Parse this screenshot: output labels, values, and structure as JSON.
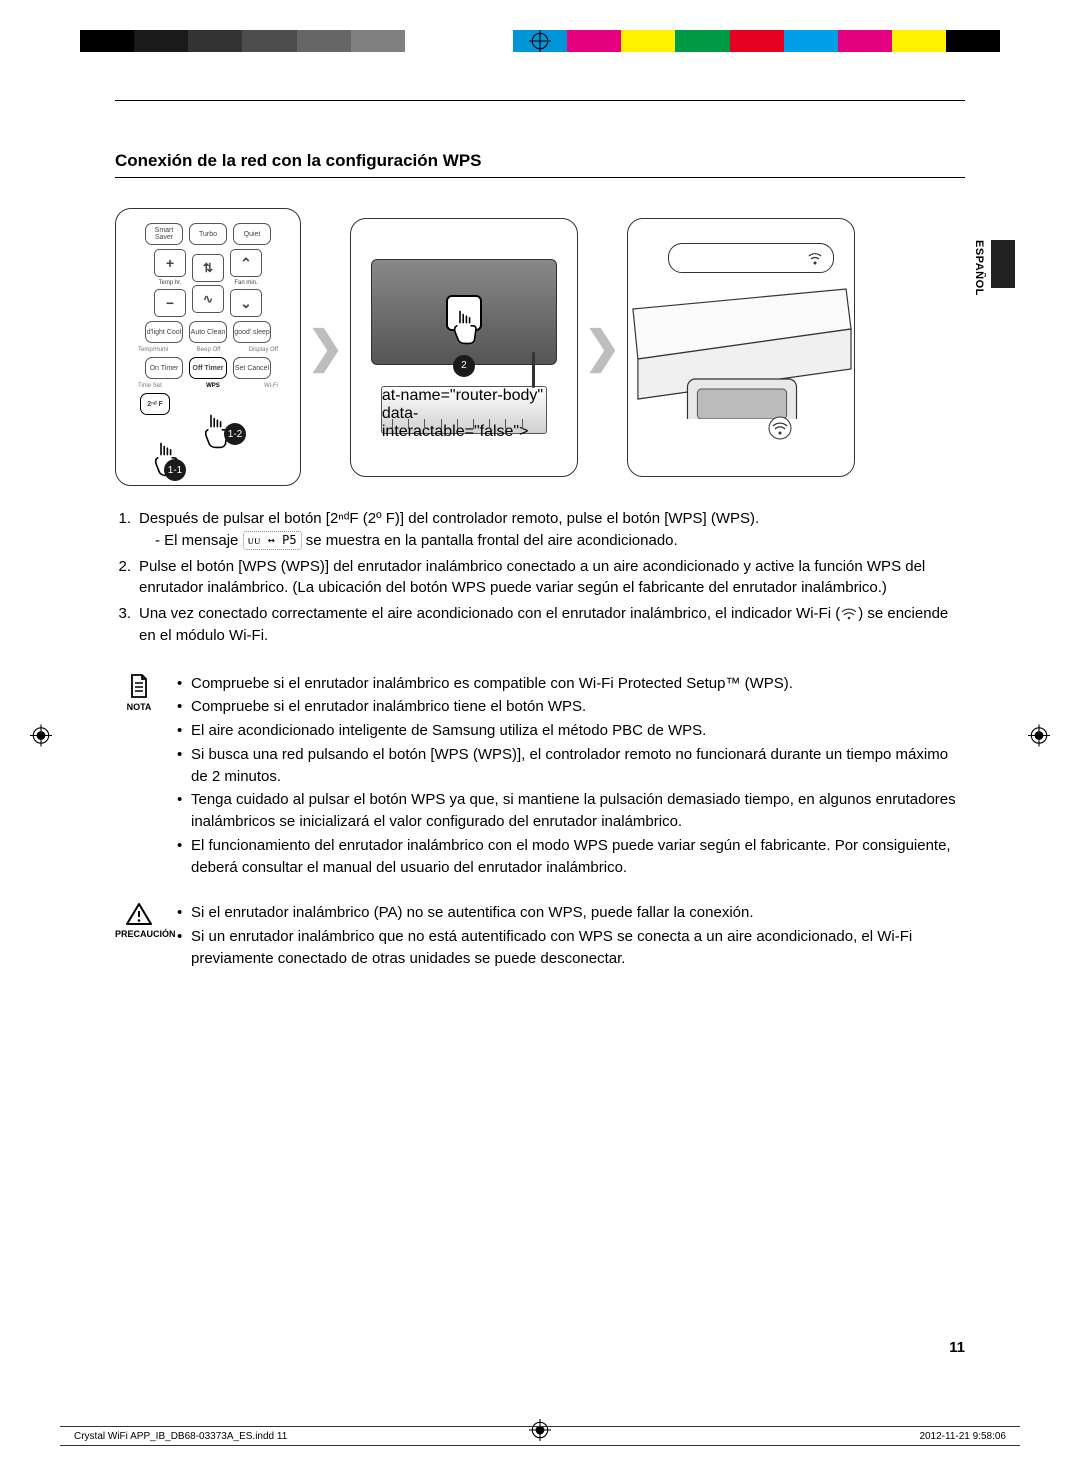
{
  "colorbar": [
    "#000000",
    "#1a1a1a",
    "#333333",
    "#4d4d4d",
    "#666666",
    "#808080",
    "#ffffff",
    "#ffffff",
    "#0094d8",
    "#e4007f",
    "#fff100",
    "#009944",
    "#e5001f",
    "#00a0e9",
    "#e4007f",
    "#fff100",
    "#000000"
  ],
  "section_title": "Conexión de la red con la configuración WPS",
  "lang_tab": "ESPAÑOL",
  "remote": {
    "row1": [
      "Smart\nSaver",
      "Turbo",
      "Quiet"
    ],
    "temp": "Temp\nhr.",
    "fan": "Fan\nmin.",
    "row3": [
      "d'light\nCool",
      "Auto\nClean",
      "good'\nsleep"
    ],
    "lbl1": [
      "Temp/Humi",
      "Beep Off",
      "Display Off"
    ],
    "row4": [
      "On\nTimer",
      "Off\nTimer",
      "Set\nCancel"
    ],
    "lbl2": [
      "Time Set",
      "WPS",
      "Wi-Fi"
    ],
    "secondf": "2ⁿᵈ F",
    "c11": "1-1",
    "c12": "1-2"
  },
  "fig2_callout": "2",
  "steps": [
    {
      "num": "1.",
      "txt": "Después de pulsar el botón [2ⁿᵈF (2º F)] del controlador remoto, pulse el botón [WPS] (WPS).",
      "sub": "- El mensaje",
      "sub2": "se muestra en la pantalla frontal del aire acondicionado.",
      "inline_left": "ᴜᴜ",
      "inline_arrow": "↔",
      "inline_right": "P5"
    },
    {
      "num": "2.",
      "txt": "Pulse el botón [WPS (WPS)] del enrutador inalámbrico conectado a un aire acondicionado y active la función WPS del enrutador inalámbrico. (La ubicación del botón WPS puede variar según el fabricante del enrutador inalámbrico.)"
    },
    {
      "num": "3.",
      "txt_a": "Una vez conectado correctamente el aire acondicionado con el enrutador inalámbrico, el indicador Wi-Fi (",
      "txt_b": ") se enciende en el módulo Wi-Fi."
    }
  ],
  "nota": {
    "label": "NOTA",
    "items": [
      "Compruebe si el enrutador inalámbrico es compatible con Wi-Fi Protected Setup™ (WPS).",
      "Compruebe si el enrutador inalámbrico tiene el botón WPS.",
      "El aire acondicionado inteligente de Samsung utiliza el método PBC de WPS.",
      "Si busca una red pulsando el botón [WPS (WPS)], el controlador remoto no funcionará durante un tiempo máximo de 2 minutos.",
      "Tenga cuidado al pulsar el botón WPS ya que, si mantiene la pulsación demasiado tiempo, en algunos enrutadores inalámbricos se inicializará el valor configurado del enrutador inalámbrico.",
      "El funcionamiento del enrutador inalámbrico con el modo WPS puede variar según el fabricante. Por consiguiente, deberá consultar el manual del usuario del enrutador inalámbrico."
    ]
  },
  "precaucion": {
    "label": "PRECAUCIÓN",
    "items": [
      "Si el enrutador inalámbrico (PA) no se autentifica con WPS, puede fallar la conexión.",
      "Si un enrutador inalámbrico que no está autentificado con WPS se conecta a un aire acondicionado, el Wi-Fi previamente conectado de otras unidades se puede desconectar."
    ]
  },
  "page_num": "11",
  "footer_left": "Crystal WiFi APP_IB_DB68-03373A_ES.indd   11",
  "footer_right": "2012-11-21   9:58:06"
}
